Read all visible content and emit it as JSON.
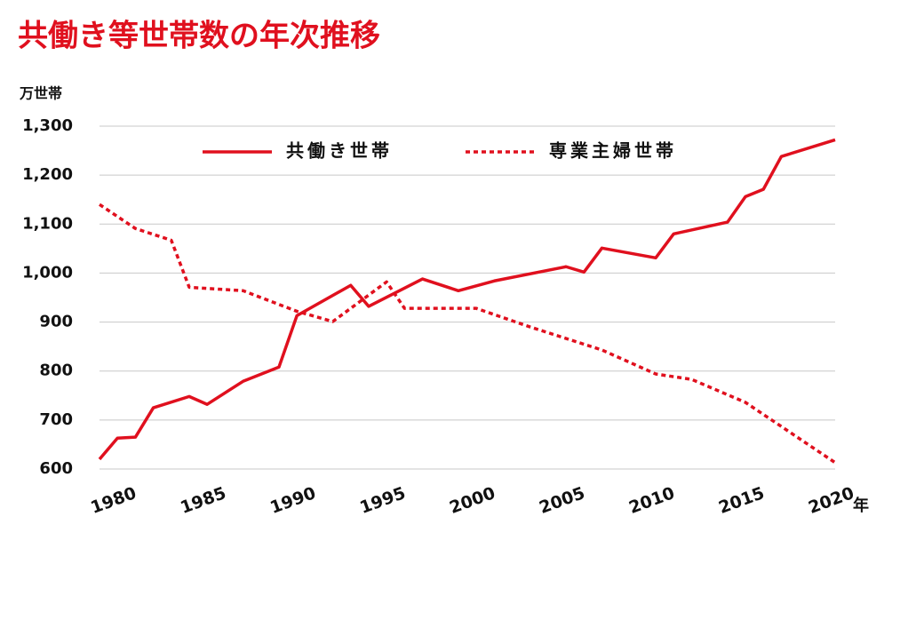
{
  "chart_data": {
    "type": "line",
    "title": "共働き等世帯数の年次推移",
    "y_label": "万世帯",
    "x_label": "年",
    "xlim": [
      1980,
      2021
    ],
    "xticks": [
      1980,
      1985,
      1990,
      1995,
      2000,
      2005,
      2010,
      2015,
      2020
    ],
    "ylim": [
      600,
      1300
    ],
    "yticks": [
      600,
      700,
      800,
      900,
      {
        "value": 1000,
        "label": "1,000"
      },
      {
        "value": 1100,
        "label": "1,100"
      },
      {
        "value": 1200,
        "label": "1,200"
      },
      {
        "value": 1300,
        "label": "1,300"
      }
    ],
    "grid": true,
    "series": [
      {
        "name": "共働き世帯",
        "color": "#e0101e",
        "style": "solid",
        "x": [
          1980,
          1981,
          1982,
          1983,
          1985,
          1986,
          1988,
          1990,
          1991,
          1994,
          1995,
          1998,
          2000,
          2002,
          2006,
          2007,
          2008,
          2011,
          2012,
          2015,
          2016,
          2017,
          2018,
          2021
        ],
        "values": [
          620,
          663,
          665,
          725,
          748,
          732,
          779,
          808,
          913,
          975,
          932,
          988,
          964,
          984,
          1013,
          1002,
          1051,
          1031,
          1080,
          1104,
          1156,
          1171,
          1238,
          1272
        ]
      },
      {
        "name": "専業主婦世帯",
        "color": "#e0101e",
        "style": "dotted",
        "x": [
          1980,
          1982,
          1984,
          1985,
          1988,
          1991,
          1993,
          1996,
          1997,
          2001,
          2004,
          2008,
          2011,
          2013,
          2016,
          2021
        ],
        "values": [
          1140,
          1091,
          1067,
          971,
          964,
          922,
          901,
          982,
          928,
          928,
          890,
          843,
          794,
          783,
          736,
          613
        ]
      }
    ]
  }
}
